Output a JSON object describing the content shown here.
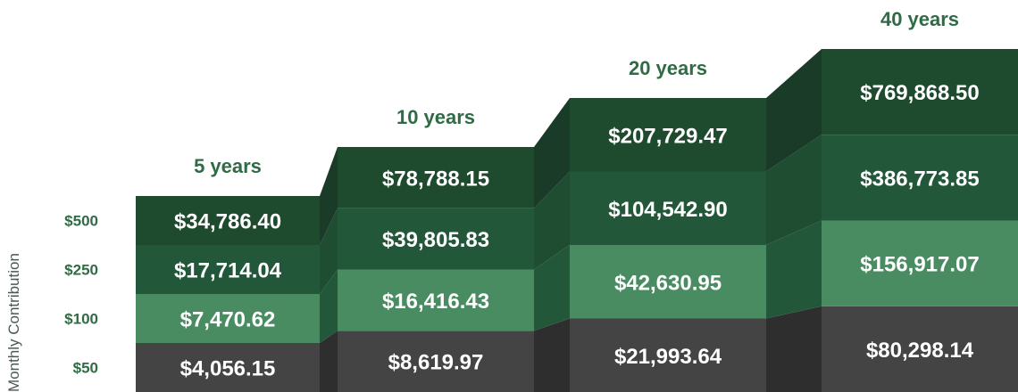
{
  "chart_data": {
    "type": "bar",
    "stacked": true,
    "ylabel": "Monthly Contribution",
    "categories": [
      "5 years",
      "10 years",
      "20 years",
      "40 years"
    ],
    "series": [
      {
        "name": "$50",
        "values": [
          "$4,056.15",
          "$8,619.97",
          "$21,993.64",
          "$80,298.14"
        ],
        "numeric": [
          4056.15,
          8619.97,
          21993.64,
          80298.14
        ]
      },
      {
        "name": "$100",
        "values": [
          "$7,470.62",
          "$16,416.43",
          "$42,630.95",
          "$156,917.07"
        ],
        "numeric": [
          7470.62,
          16416.43,
          42630.95,
          156917.07
        ]
      },
      {
        "name": "$250",
        "values": [
          "$17,714.04",
          "$39,805.83",
          "$104,542.90",
          "$386,773.85"
        ],
        "numeric": [
          17714.04,
          39805.83,
          104542.9,
          386773.85
        ]
      },
      {
        "name": "$500",
        "values": [
          "$34,786.40",
          "$78,788.15",
          "$207,729.47",
          "$769,868.50"
        ],
        "numeric": [
          34786.4,
          78788.15,
          207729.47,
          769868.5
        ]
      }
    ],
    "grid": false,
    "legend": "left"
  },
  "colors": {
    "label_green": "#2f6b44",
    "axis_label": "#4a5a50",
    "band_500": "#1e4a2e",
    "band_250": "#23573a",
    "band_100": "#4a8c62",
    "band_50": "#444444",
    "side_500": "#1a3b27",
    "side_250": "#1f4d31",
    "side_100": "#23573a",
    "side_50": "#2e2e2e"
  }
}
